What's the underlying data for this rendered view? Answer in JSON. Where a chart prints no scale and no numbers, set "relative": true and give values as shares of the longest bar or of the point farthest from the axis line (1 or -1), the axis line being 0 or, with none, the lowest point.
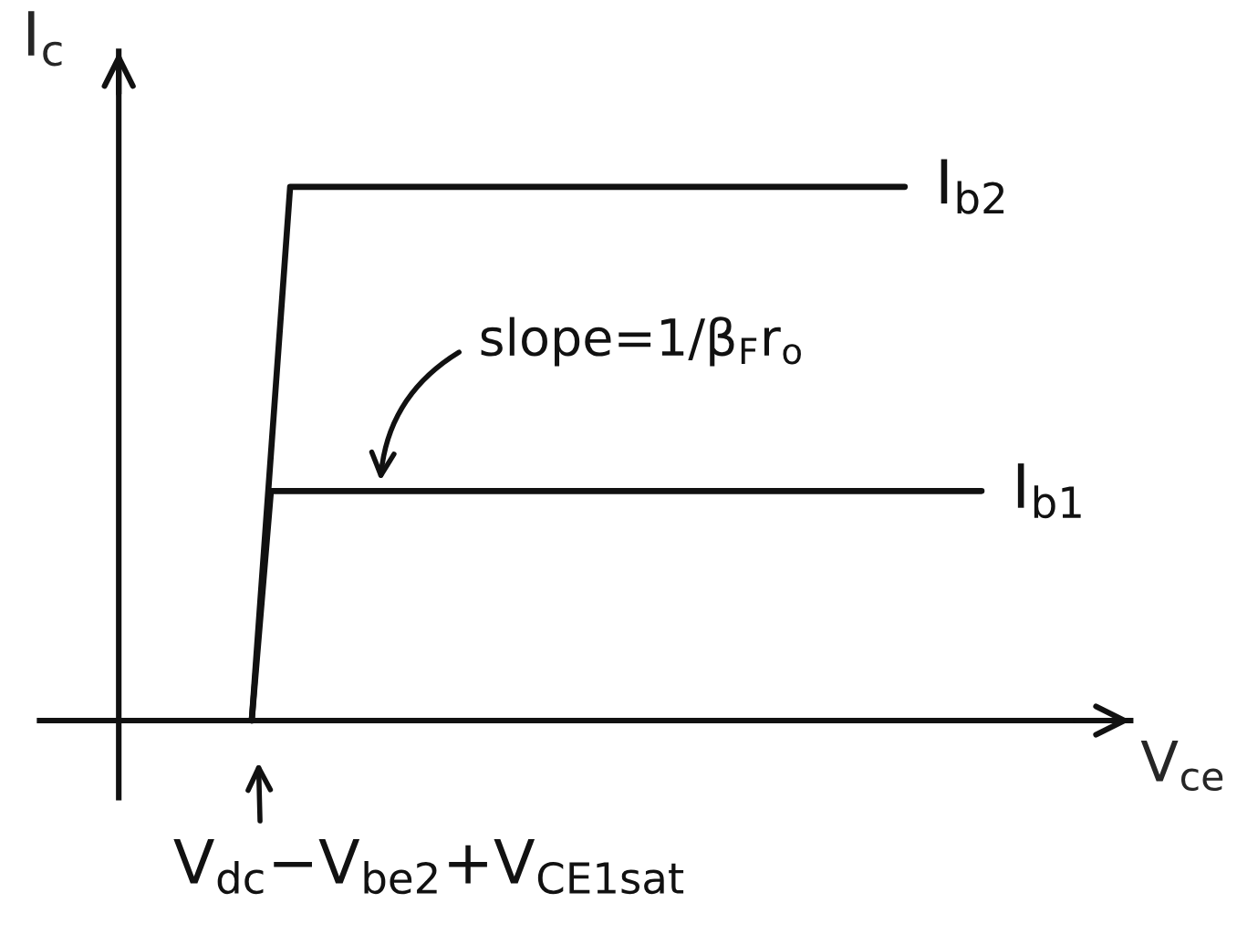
{
  "chart_data": {
    "type": "line",
    "relative": true,
    "xlabel": "V$_{ce}$",
    "ylabel": "I$_{c}$",
    "categories": [
      null,
      null,
      null,
      null,
      null,
      null,
      null,
      null,
      null,
      null,
      null,
      null,
      null,
      null,
      null,
      null,
      null,
      null,
      null,
      null,
      null,
      null,
      null,
      null,
      null,
      null,
      null,
      null,
      null,
      null,
      null,
      null,
      null,
      null,
      null,
      null,
      null,
      null,
      null
    ],
    "series": [
      {
        "name": "I$_{b2}$",
        "color": "#111111",
        "values": [
          0,
          0.5,
          1,
          1,
          1,
          1,
          1,
          1,
          1,
          1,
          1,
          1,
          1,
          1,
          1,
          1,
          1,
          1,
          1,
          1,
          1,
          1,
          1,
          1,
          1,
          1,
          1,
          1,
          1,
          1,
          1,
          1,
          1,
          1,
          1,
          null,
          null,
          null,
          null
        ]
      },
      {
        "name": "I$_{b1}$",
        "color": "#111111",
        "values": [
          0,
          0.43,
          0.43,
          0.43,
          0.43,
          0.43,
          0.43,
          0.43,
          0.43,
          0.43,
          0.43,
          0.43,
          0.43,
          0.43,
          0.43,
          0.43,
          0.43,
          0.43,
          0.43,
          0.43,
          0.43,
          0.43,
          0.43,
          0.43,
          0.43,
          0.43,
          0.43,
          0.43,
          0.43,
          0.43,
          0.43,
          0.43,
          0.43,
          0.43,
          0.43,
          0.43,
          0.43,
          0.43,
          0.43
        ]
      }
    ],
    "annotations": [
      {
        "text": "slope=1/β$_{F}$r$_{o}$",
        "y": 0.43
      },
      "V$_{dc}$−V$_{be2}$+V$_{CE1sat}$"
    ]
  }
}
